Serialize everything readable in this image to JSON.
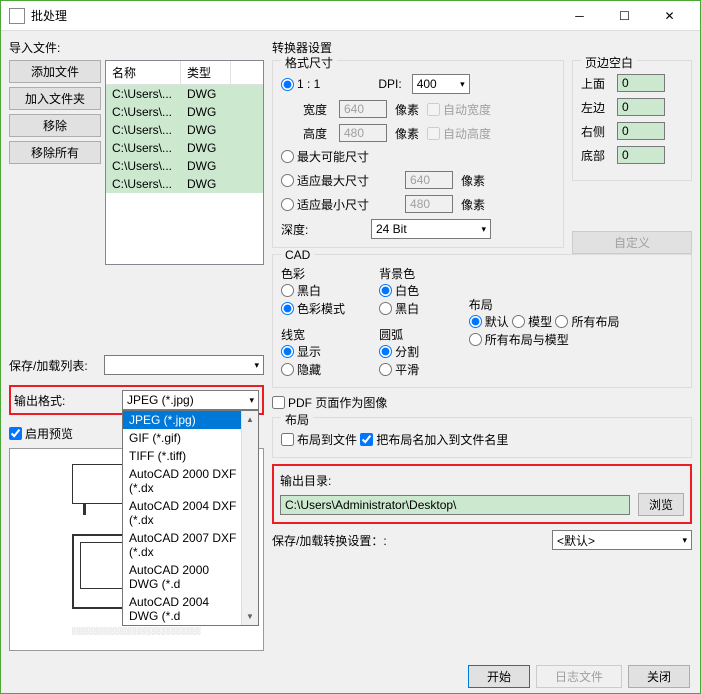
{
  "window": {
    "title": "批处理"
  },
  "left": {
    "import_label": "导入文件:",
    "buttons": {
      "add_file": "添加文件",
      "add_folder": "加入文件夹",
      "remove": "移除",
      "remove_all": "移除所有"
    },
    "filelist": {
      "headers": {
        "name": "名称",
        "type": "类型"
      },
      "rows": [
        {
          "name": "C:\\Users\\...",
          "type": "DWG"
        },
        {
          "name": "C:\\Users\\...",
          "type": "DWG"
        },
        {
          "name": "C:\\Users\\...",
          "type": "DWG"
        },
        {
          "name": "C:\\Users\\...",
          "type": "DWG"
        },
        {
          "name": "C:\\Users\\...",
          "type": "DWG"
        },
        {
          "name": "C:\\Users\\...",
          "type": "DWG"
        }
      ]
    },
    "save_list_label": "保存/加载列表:",
    "output_format_label": "输出格式:",
    "output_format_value": "JPEG (*.jpg)",
    "dropdown_items": [
      "JPEG (*.jpg)",
      "GIF (*.gif)",
      "TIFF (*.tiff)",
      "AutoCAD 2000 DXF (*.dx",
      "AutoCAD 2004 DXF (*.dx",
      "AutoCAD 2007 DXF (*.dx",
      "AutoCAD 2000 DWG (*.d",
      "AutoCAD 2004 DWG (*.d"
    ],
    "enable_preview": "启用预览"
  },
  "right": {
    "converter_label": "转换器设置",
    "format_size": {
      "title": "格式尺寸",
      "one_to_one": "1 : 1",
      "dpi_label": "DPI:",
      "dpi_value": "400",
      "width_label": "宽度",
      "width_value": "640",
      "pixels": "像素",
      "auto_width": "自动宽度",
      "height_label": "高度",
      "height_value": "480",
      "auto_height": "自动高度",
      "max_possible": "最大可能尺寸",
      "fit_max": "适应最大尺寸",
      "fit_max_value": "640",
      "fit_min": "适应最小尺寸",
      "fit_min_value": "480",
      "depth_label": "深度:",
      "depth_value": "24 Bit"
    },
    "margins": {
      "title": "页边空白",
      "top": "上面",
      "left": "左边",
      "right": "右侧",
      "bottom": "底部",
      "top_v": "0",
      "left_v": "0",
      "right_v": "0",
      "bottom_v": "0",
      "custom": "自定义"
    },
    "cad": {
      "title": "CAD",
      "color": "色彩",
      "bw": "黑白",
      "colormode": "色彩模式",
      "bgcolor": "背景色",
      "white": "白色",
      "black": "黑白",
      "layout_t": "布局",
      "default": "默认",
      "model": "模型",
      "all_layouts": "所有布局",
      "all_layouts_model": "所有布局与模型",
      "linew": "线宽",
      "show": "显示",
      "hide": "隐藏",
      "arc": "圆弧",
      "split": "分割",
      "smooth": "平滑"
    },
    "pdf_as_image": "PDF 页面作为图像",
    "layout": {
      "title": "布局",
      "to_file": "布局到文件",
      "add_name": "把布局名加入到文件名里"
    },
    "output_dir": {
      "label": "输出目录:",
      "path": "C:\\Users\\Administrator\\Desktop\\",
      "browse": "浏览"
    },
    "save_settings_label": "保存/加载转换设置：:",
    "save_settings_value": "<默认>"
  },
  "footer": {
    "start": "开始",
    "log": "日志文件",
    "close": "关闭"
  }
}
